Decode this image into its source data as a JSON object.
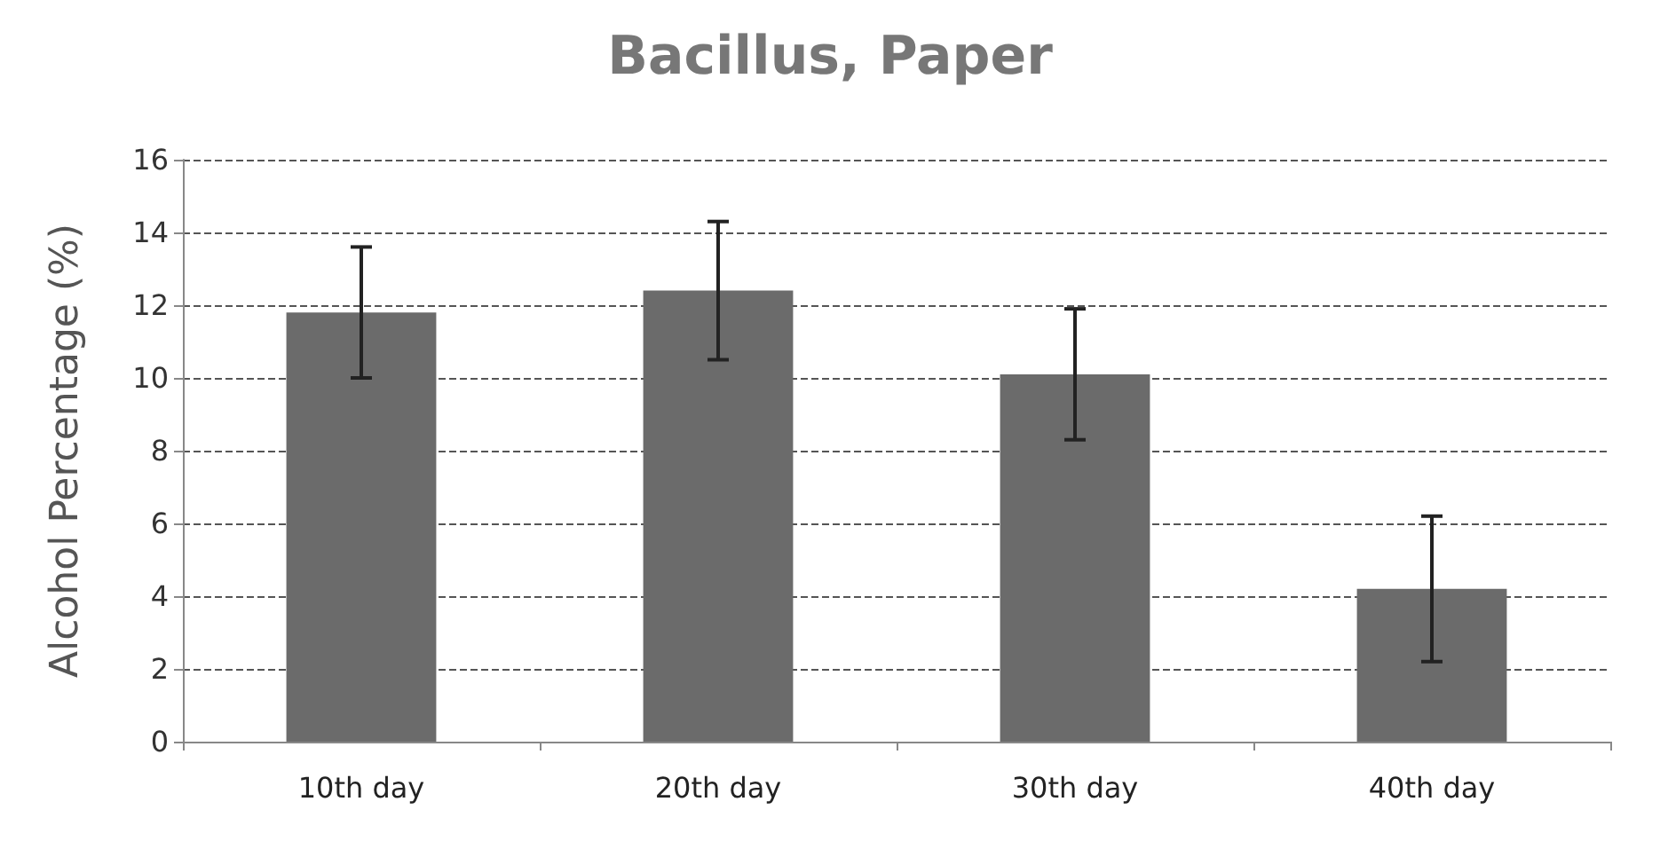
{
  "chart_data": {
    "type": "bar",
    "title": "Bacillus, Paper",
    "ylabel": "Alcohol Percentage (%)",
    "categories": [
      "10th day",
      "20th day",
      "30th day",
      "40th day"
    ],
    "values": [
      11.8,
      12.4,
      10.1,
      4.2
    ],
    "errors": [
      1.8,
      1.9,
      1.8,
      2.0
    ],
    "color": "#6b6b6b",
    "ylim": [
      0,
      16
    ],
    "yticks": [
      0,
      2,
      4,
      6,
      8,
      10,
      12,
      14,
      16
    ],
    "grid": "y"
  }
}
